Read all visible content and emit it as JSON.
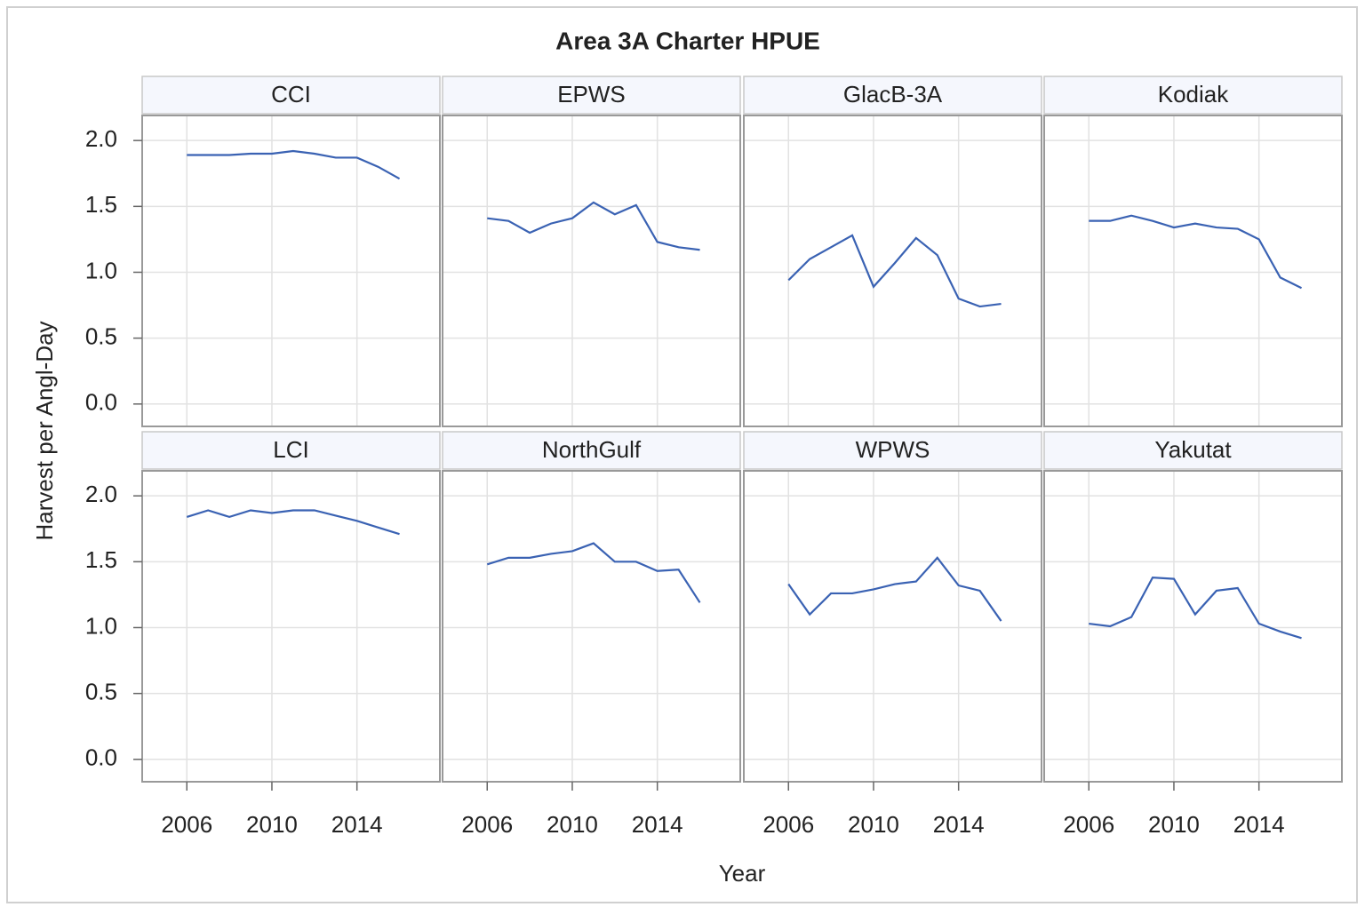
{
  "chart_data": {
    "type": "line",
    "title": "Area 3A Charter HPUE",
    "x_label": "Year",
    "y_label": "Harvest per Angl-Day",
    "x": [
      2006,
      2007,
      2008,
      2009,
      2010,
      2011,
      2012,
      2013,
      2014,
      2015,
      2016
    ],
    "xlim": [
      2003.9,
      2017.9
    ],
    "xticks": [
      2006,
      2010,
      2014
    ],
    "ylim": [
      -0.17,
      2.19
    ],
    "yticks": [
      {
        "value": 0,
        "label": "0.0"
      },
      0.5,
      {
        "value": 1,
        "label": "1.0"
      },
      1.5,
      {
        "value": 2,
        "label": "2.0"
      }
    ],
    "grid": true,
    "color": "#3a62b3",
    "series": [
      {
        "name": "CCI",
        "values": [
          1.89,
          1.89,
          1.89,
          1.9,
          1.9,
          1.92,
          1.9,
          1.87,
          1.87,
          1.8,
          1.71
        ]
      },
      {
        "name": "EPWS",
        "values": [
          1.41,
          1.39,
          1.3,
          1.37,
          1.41,
          1.53,
          1.44,
          1.51,
          1.23,
          1.19,
          1.17
        ]
      },
      {
        "name": "GlacB-3A",
        "values": [
          0.94,
          1.1,
          1.19,
          1.28,
          0.89,
          1.07,
          1.26,
          1.13,
          0.8,
          0.74,
          0.76
        ]
      },
      {
        "name": "Kodiak",
        "values": [
          1.39,
          1.39,
          1.43,
          1.39,
          1.34,
          1.37,
          1.34,
          1.33,
          1.25,
          0.96,
          0.88
        ]
      },
      {
        "name": "LCI",
        "values": [
          1.84,
          1.89,
          1.84,
          1.89,
          1.87,
          1.89,
          1.89,
          1.85,
          1.81,
          1.76,
          1.71
        ]
      },
      {
        "name": "NorthGulf",
        "values": [
          1.48,
          1.53,
          1.53,
          1.56,
          1.58,
          1.64,
          1.5,
          1.5,
          1.43,
          1.44,
          1.19
        ]
      },
      {
        "name": "WPWS",
        "values": [
          1.33,
          1.1,
          1.26,
          1.26,
          1.29,
          1.33,
          1.35,
          1.53,
          1.32,
          1.28,
          1.05
        ]
      },
      {
        "name": "Yakutat",
        "values": [
          1.03,
          1.01,
          1.08,
          1.38,
          1.37,
          1.1,
          1.28,
          1.3,
          1.03,
          0.97,
          0.92
        ]
      }
    ]
  }
}
